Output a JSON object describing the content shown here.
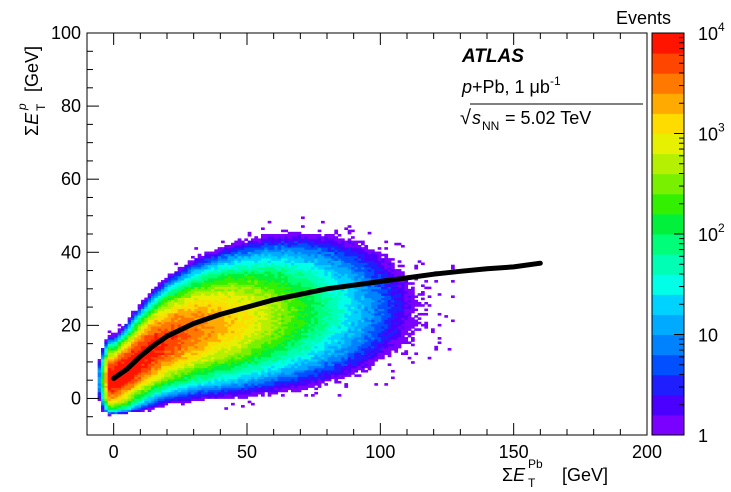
{
  "chart_data": {
    "type": "heatmap",
    "title": "",
    "experiment": "ATLAS",
    "collision": "p+Pb, 1 μb",
    "collision_sup": "-1",
    "sqrt_symbol": "√",
    "energy_var": "s",
    "energy_sub": "NN",
    "energy_value": "= 5.02 TeV",
    "xlabel": {
      "main": "ΣE",
      "sub": "T",
      "sup": "Pb",
      "unit": "[GeV]"
    },
    "ylabel": {
      "main": "ΣE",
      "sub": "T",
      "sup": "p",
      "unit": "[GeV]"
    },
    "xlim": [
      -10,
      200
    ],
    "ylim": [
      -10,
      100
    ],
    "xticks": [
      0,
      50,
      100,
      150,
      200
    ],
    "yticks": [
      0,
      20,
      40,
      60,
      80,
      100
    ],
    "colorbar": {
      "title": "Events",
      "scale": "log",
      "range": [
        1,
        10000
      ],
      "tick_labels": [
        {
          "base": "1",
          "exp": "",
          "value": 1
        },
        {
          "base": "10",
          "exp": "",
          "value": 10
        },
        {
          "base": "10",
          "exp": "2",
          "value": 100
        },
        {
          "base": "10",
          "exp": "3",
          "value": 1000
        },
        {
          "base": "10",
          "exp": "4",
          "value": 10000
        }
      ],
      "palette": [
        "#7a00ff",
        "#4b00ff",
        "#1e1eff",
        "#0050ff",
        "#0082ff",
        "#00aaff",
        "#00d2ff",
        "#00ffe6",
        "#00ffb4",
        "#00ff78",
        "#00f03c",
        "#32f000",
        "#78f000",
        "#b4f000",
        "#e6f000",
        "#ffdc00",
        "#ffaa00",
        "#ff7800",
        "#ff4600",
        "#ff1400"
      ]
    },
    "density_model": {
      "description_free": true,
      "peak_x": 5,
      "peak_y": 5,
      "peak_log_events": 4.0
    },
    "mean_curve": {
      "name": "",
      "x": [
        0,
        5,
        10,
        15,
        20,
        30,
        40,
        50,
        60,
        70,
        80,
        90,
        100,
        110,
        120,
        130,
        140,
        150,
        160
      ],
      "y": [
        5.5,
        8.0,
        11.5,
        14.5,
        17.0,
        20.5,
        23.0,
        25.0,
        27.0,
        28.5,
        30.0,
        31.0,
        32.0,
        33.0,
        34.0,
        34.8,
        35.5,
        36.0,
        37.0
      ]
    }
  }
}
